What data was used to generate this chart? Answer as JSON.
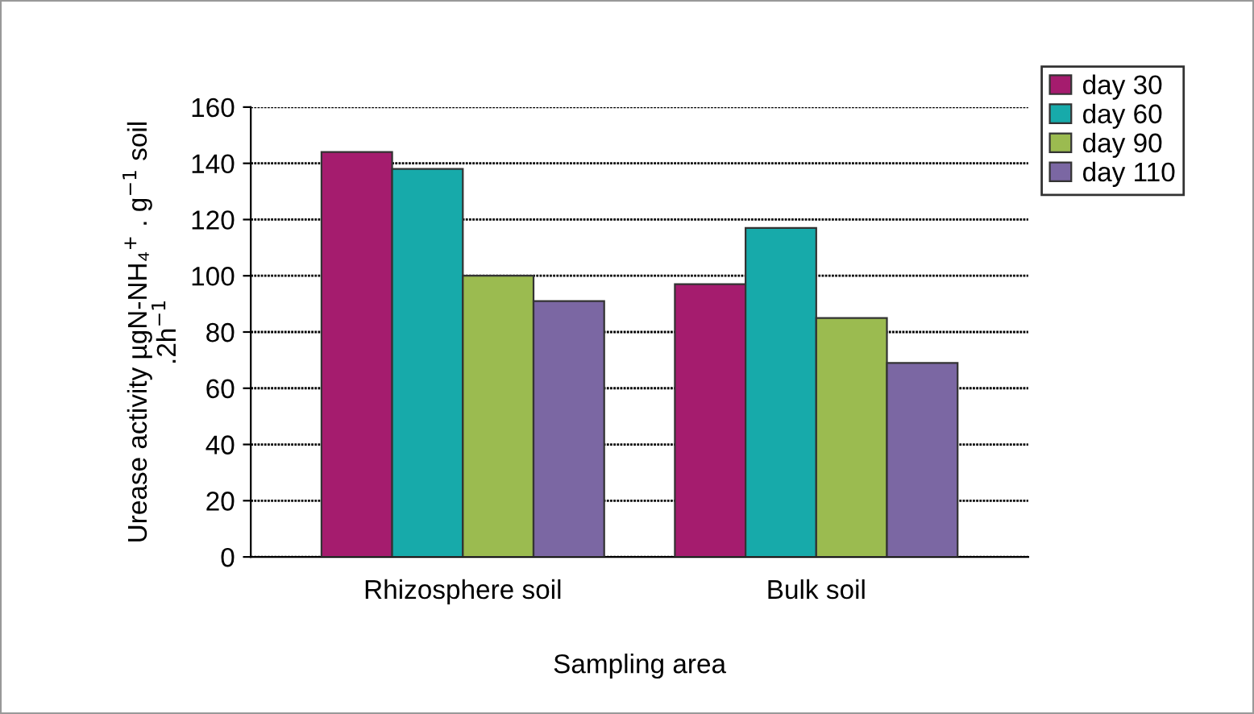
{
  "chart_data": {
    "type": "bar",
    "xlabel": "Sampling area",
    "ylabel": "Urease activity µgN-NH₄$^{+}$ . g$^{−1}$ soil\n.2h$^{−1}$",
    "categories": [
      "Rhizosphere soil",
      "Bulk soil"
    ],
    "series": [
      {
        "name": "day 30",
        "color": "#a51c6e",
        "values": [
          144,
          97
        ]
      },
      {
        "name": "day 60",
        "color": "#17aaaa",
        "values": [
          138,
          117
        ]
      },
      {
        "name": "day 90",
        "color": "#9bbb50",
        "values": [
          100,
          85
        ]
      },
      {
        "name": "day 110",
        "color": "#7b67a3",
        "values": [
          91,
          69
        ]
      }
    ],
    "ylim": [
      0,
      160
    ],
    "yticks": [
      0,
      20,
      40,
      60,
      80,
      100,
      120,
      140,
      160
    ],
    "grid": "y",
    "legend": "top right"
  }
}
